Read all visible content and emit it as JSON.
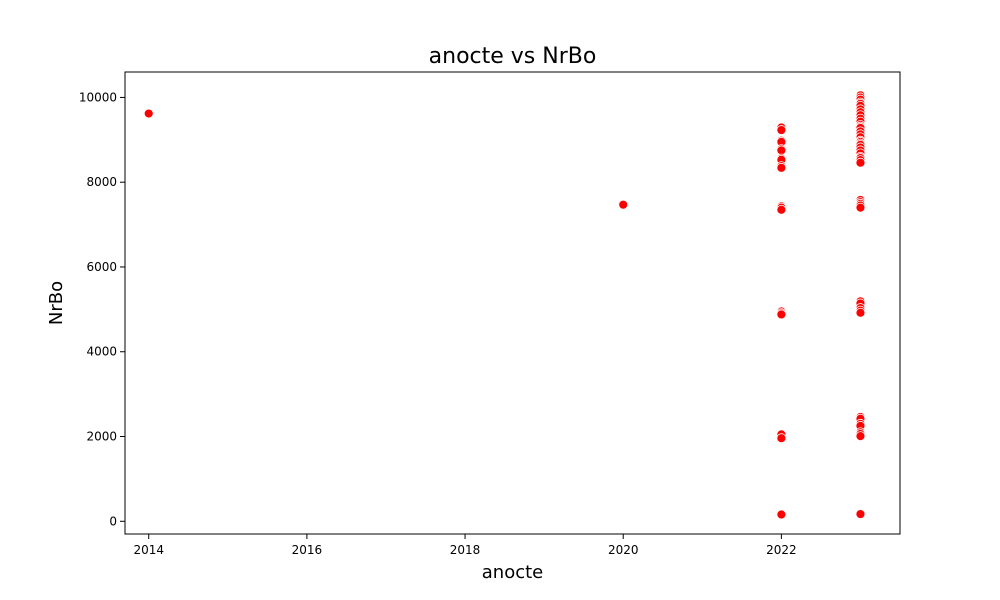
{
  "chart_data": {
    "type": "scatter",
    "title": "anocte vs NrBo",
    "xlabel": "anocte",
    "ylabel": "NrBo",
    "xlim": [
      2013.7,
      2023.5
    ],
    "ylim": [
      -300,
      10600
    ],
    "x_ticks": [
      2014,
      2016,
      2018,
      2020,
      2022
    ],
    "y_ticks": [
      0,
      2000,
      4000,
      6000,
      8000,
      10000
    ],
    "grid": false,
    "color": "#ff0000",
    "series": [
      {
        "points": [
          [
            2014,
            9620
          ],
          [
            2020,
            7470
          ],
          [
            2022,
            9290
          ],
          [
            2022,
            9230
          ],
          [
            2022,
            8980
          ],
          [
            2022,
            8950
          ],
          [
            2022,
            8780
          ],
          [
            2022,
            8750
          ],
          [
            2022,
            8560
          ],
          [
            2022,
            8530
          ],
          [
            2022,
            8380
          ],
          [
            2022,
            8340
          ],
          [
            2022,
            7430
          ],
          [
            2022,
            7400
          ],
          [
            2022,
            7350
          ],
          [
            2022,
            4950
          ],
          [
            2022,
            4910
          ],
          [
            2022,
            4880
          ],
          [
            2022,
            2050
          ],
          [
            2022,
            1960
          ],
          [
            2022,
            160
          ],
          [
            2023,
            10050
          ],
          [
            2023,
            10000
          ],
          [
            2023,
            9950
          ],
          [
            2023,
            9880
          ],
          [
            2023,
            9850
          ],
          [
            2023,
            9800
          ],
          [
            2023,
            9720
          ],
          [
            2023,
            9650
          ],
          [
            2023,
            9580
          ],
          [
            2023,
            9500
          ],
          [
            2023,
            9430
          ],
          [
            2023,
            9350
          ],
          [
            2023,
            9310
          ],
          [
            2023,
            9280
          ],
          [
            2023,
            9200
          ],
          [
            2023,
            9130
          ],
          [
            2023,
            9060
          ],
          [
            2023,
            8980
          ],
          [
            2023,
            8950
          ],
          [
            2023,
            8910
          ],
          [
            2023,
            8880
          ],
          [
            2023,
            8820
          ],
          [
            2023,
            8750
          ],
          [
            2023,
            8680
          ],
          [
            2023,
            8600
          ],
          [
            2023,
            8570
          ],
          [
            2023,
            8520
          ],
          [
            2023,
            8460
          ],
          [
            2023,
            7580
          ],
          [
            2023,
            7530
          ],
          [
            2023,
            7490
          ],
          [
            2023,
            7450
          ],
          [
            2023,
            7400
          ],
          [
            2023,
            5190
          ],
          [
            2023,
            5140
          ],
          [
            2023,
            5030
          ],
          [
            2023,
            4970
          ],
          [
            2023,
            4920
          ],
          [
            2023,
            2460
          ],
          [
            2023,
            2420
          ],
          [
            2023,
            2300
          ],
          [
            2023,
            2250
          ],
          [
            2023,
            2100
          ],
          [
            2023,
            2060
          ],
          [
            2023,
            2010
          ],
          [
            2023,
            170
          ]
        ]
      }
    ]
  }
}
